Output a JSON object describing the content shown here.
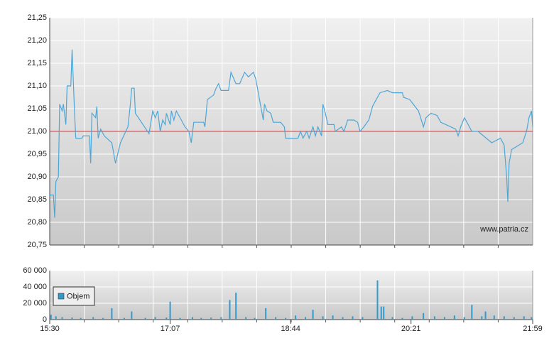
{
  "chart_data": [
    {
      "type": "line",
      "color": "#4ea6d6",
      "watermark": "www.patria.cz",
      "reference_line": 21.0,
      "reference_color": "#d83a3a",
      "x": [
        "15:30",
        "15:33",
        "15:34",
        "15:35",
        "15:37",
        "15:38",
        "15:40",
        "15:41",
        "15:43",
        "15:44",
        "15:47",
        "15:48",
        "15:50",
        "15:51",
        "15:56",
        "15:57",
        "16:02",
        "16:03",
        "16:04",
        "16:07",
        "16:08",
        "16:09",
        "16:11",
        "16:14",
        "16:20",
        "16:23",
        "16:27",
        "16:33",
        "16:35",
        "16:36",
        "16:38",
        "16:39",
        "16:50",
        "16:53",
        "16:55",
        "16:57",
        "16:59",
        "17:01",
        "17:03",
        "17:04",
        "17:07",
        "17:08",
        "17:10",
        "17:12",
        "17:16",
        "17:19",
        "17:22",
        "17:24",
        "17:26",
        "17:34",
        "17:35",
        "17:37",
        "17:42",
        "17:44",
        "17:46",
        "17:48",
        "17:54",
        "17:56",
        "18:00",
        "18:03",
        "18:07",
        "18:10",
        "18:14",
        "18:16",
        "18:19",
        "18:22",
        "18:23",
        "18:25",
        "18:28",
        "18:30",
        "18:36",
        "18:39",
        "18:40",
        "18:50",
        "18:52",
        "18:54",
        "18:57",
        "18:59",
        "19:02",
        "19:04",
        "19:06",
        "19:09",
        "19:10",
        "19:12",
        "19:14",
        "19:19",
        "19:20",
        "19:25",
        "19:27",
        "19:30",
        "19:35",
        "19:38",
        "19:40",
        "19:43",
        "19:47",
        "19:50",
        "19:53",
        "19:56",
        "20:02",
        "20:06",
        "20:14",
        "20:15",
        "20:20",
        "20:27",
        "20:31",
        "20:33",
        "20:37",
        "20:42",
        "20:45",
        "20:53",
        "20:57",
        "20:59",
        "21:01",
        "21:04",
        "21:06",
        "21:10",
        "21:15",
        "21:26",
        "21:33",
        "21:36",
        "21:38",
        "21:39",
        "21:40",
        "21:42",
        "21:51",
        "21:54",
        "21:56",
        "21:58",
        "21:59"
      ],
      "values": [
        20.86,
        20.86,
        20.81,
        20.89,
        20.9,
        21.06,
        21.045,
        21.06,
        21.015,
        21.1,
        21.1,
        21.18,
        21.04,
        20.985,
        20.985,
        20.99,
        20.99,
        20.93,
        21.04,
        21.03,
        21.055,
        20.985,
        21.005,
        20.99,
        20.975,
        20.93,
        20.975,
        21.01,
        21.06,
        21.095,
        21.095,
        21.04,
        20.995,
        21.045,
        21.03,
        21.045,
        21.0,
        21.025,
        21.015,
        21.04,
        21.015,
        21.045,
        21.025,
        21.045,
        21.025,
        21.01,
        21.0,
        20.975,
        21.02,
        21.02,
        21.01,
        21.07,
        21.08,
        21.095,
        21.105,
        21.09,
        21.09,
        21.13,
        21.105,
        21.105,
        21.13,
        21.12,
        21.13,
        21.115,
        21.07,
        21.025,
        21.06,
        21.045,
        21.04,
        21.02,
        21.02,
        21.01,
        20.985,
        20.985,
        21.0,
        20.985,
        21.0,
        20.985,
        21.01,
        20.99,
        21.01,
        20.99,
        21.06,
        21.04,
        21.015,
        21.015,
        21.0,
        21.01,
        21.0,
        21.025,
        21.025,
        21.02,
        21.0,
        21.01,
        21.025,
        21.055,
        21.07,
        21.085,
        21.09,
        21.085,
        21.085,
        21.075,
        21.07,
        21.045,
        21.01,
        21.03,
        21.04,
        21.035,
        21.02,
        21.01,
        21.005,
        20.99,
        21.01,
        21.03,
        21.02,
        21.0,
        21.0,
        20.975,
        20.985,
        20.97,
        20.9,
        20.845,
        20.93,
        20.96,
        20.975,
        21.0,
        21.03,
        21.045,
        21.01
      ],
      "xlim": [
        "15:30",
        "21:59"
      ],
      "ylim": [
        20.75,
        21.25
      ],
      "yticks": [
        {
          "value": 20.75,
          "label": "20,75"
        },
        {
          "value": 20.8,
          "label": "20,80"
        },
        {
          "value": 20.85,
          "label": "20,85"
        },
        {
          "value": 20.9,
          "label": "20,90"
        },
        {
          "value": 20.95,
          "label": "20,95"
        },
        {
          "value": 21.0,
          "label": "21,00"
        },
        {
          "value": 21.05,
          "label": "21,05"
        },
        {
          "value": 21.1,
          "label": "21,10"
        },
        {
          "value": 21.15,
          "label": "21,15"
        },
        {
          "value": 21.2,
          "label": "21,20"
        },
        {
          "value": 21.25,
          "label": "21,25"
        }
      ],
      "grid": true
    },
    {
      "type": "bar",
      "legend": "upper left",
      "x": [
        "15:31",
        "15:35",
        "15:40",
        "15:48",
        "15:55",
        "16:05",
        "16:13",
        "16:20",
        "16:30",
        "16:36",
        "16:47",
        "16:55",
        "17:04",
        "17:07",
        "17:15",
        "17:25",
        "17:32",
        "17:40",
        "17:48",
        "17:55",
        "18:00",
        "18:08",
        "18:15",
        "18:24",
        "18:32",
        "18:40",
        "18:48",
        "18:56",
        "19:02",
        "19:10",
        "19:18",
        "19:26",
        "19:34",
        "19:42",
        "19:54",
        "19:57",
        "19:59",
        "20:06",
        "20:14",
        "20:22",
        "20:31",
        "20:40",
        "20:48",
        "20:56",
        "21:04",
        "21:10",
        "21:18",
        "21:21",
        "21:28",
        "21:36",
        "21:44",
        "21:52",
        "21:58"
      ],
      "series": [
        {
          "name": "Objem",
          "color": "#3399cc",
          "values": [
            6000,
            4000,
            3000,
            2500,
            2000,
            3000,
            2000,
            14000,
            2000,
            10000,
            2000,
            3000,
            2500,
            22000,
            2000,
            3000,
            2000,
            2500,
            3000,
            24000,
            33000,
            3000,
            2000,
            14000,
            3000,
            2000,
            5000,
            3000,
            12000,
            4000,
            5000,
            3000,
            4000,
            3000,
            48000,
            16000,
            16000,
            3000,
            2000,
            4000,
            8000,
            4000,
            3000,
            5000,
            3000,
            18000,
            4000,
            10000,
            5000,
            4000,
            3000,
            4000,
            3000
          ]
        }
      ],
      "xlim": [
        "15:30",
        "21:59"
      ],
      "xticks": [
        "15:30",
        "17:07",
        "18:44",
        "20:21",
        "21:59"
      ],
      "ylim": [
        0,
        60000
      ],
      "yticks": [
        0,
        {
          "value": 20000,
          "label": "20 000"
        },
        {
          "value": 40000,
          "label": "40 000"
        },
        {
          "value": 60000,
          "label": "60 000"
        }
      ],
      "grid": true
    }
  ]
}
